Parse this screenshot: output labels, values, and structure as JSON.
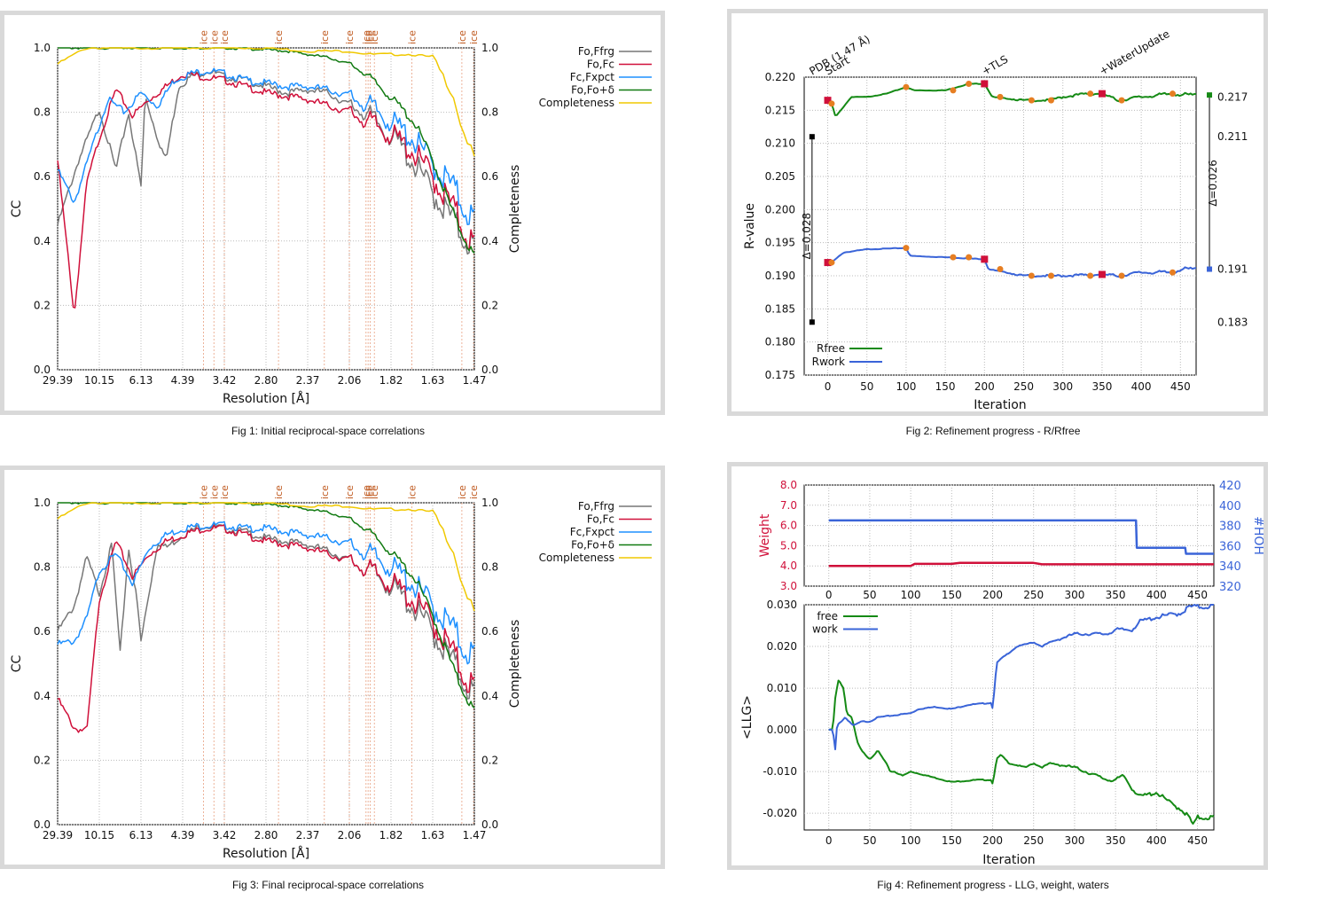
{
  "captions": {
    "fig1": "Fig 1:  Initial reciprocal-space correlations",
    "fig2": "Fig 2:  Refinement progress - R/Rfree",
    "fig3": "Fig 3:  Final reciprocal-space correlations",
    "fig4": "Fig 4:  Refinement progress - LLG, weight, waters"
  },
  "chart_data": [
    {
      "id": "fig1",
      "type": "line",
      "xlabel": "Resolution [Å]",
      "ylabel": "CC",
      "y2label": "Completeness",
      "xtick_labels": [
        "29.39",
        "10.15",
        "6.13",
        "4.39",
        "3.42",
        "2.80",
        "2.37",
        "2.06",
        "1.82",
        "1.63",
        "1.47"
      ],
      "ylim": [
        0,
        1
      ],
      "yticks": [
        "0.0",
        "0.2",
        "0.4",
        "0.6",
        "0.8",
        "1.0"
      ],
      "y2ticks": [
        "0.0",
        "0.2",
        "0.4",
        "0.6",
        "0.8",
        "1.0"
      ],
      "grid": true,
      "legend_position": "outside-right",
      "ice_label": "ice",
      "ice_ring_x_fraction": [
        0.35,
        0.375,
        0.4,
        0.53,
        0.64,
        0.7,
        0.74,
        0.745,
        0.75,
        0.76,
        0.85,
        0.97,
        0.998
      ],
      "series": [
        {
          "name": "Fo,Ffrg",
          "color": "#777777",
          "x": [
            0,
            0.05,
            0.1,
            0.14,
            0.17,
            0.2,
            0.21,
            0.24,
            0.26,
            0.29,
            0.32,
            0.36,
            0.4,
            0.45,
            0.5,
            0.55,
            0.6,
            0.65,
            0.7,
            0.74,
            0.78,
            0.82,
            0.86,
            0.9,
            0.94,
            0.97,
            1
          ],
          "y": [
            0.45,
            0.65,
            0.81,
            0.62,
            0.8,
            0.57,
            0.85,
            0.72,
            0.65,
            0.88,
            0.91,
            0.93,
            0.91,
            0.9,
            0.88,
            0.86,
            0.87,
            0.86,
            0.82,
            0.8,
            0.75,
            0.7,
            0.63,
            0.55,
            0.48,
            0.42,
            0.38
          ]
        },
        {
          "name": "Fo,Fc",
          "color": "#d0103a",
          "x": [
            0,
            0.04,
            0.07,
            0.1,
            0.14,
            0.18,
            0.22,
            0.26,
            0.3,
            0.35,
            0.4,
            0.45,
            0.5,
            0.55,
            0.6,
            0.65,
            0.7,
            0.75,
            0.8,
            0.85,
            0.9,
            0.94,
            0.97,
            1
          ],
          "y": [
            0.65,
            0.17,
            0.58,
            0.72,
            0.87,
            0.79,
            0.84,
            0.88,
            0.92,
            0.91,
            0.9,
            0.88,
            0.86,
            0.85,
            0.84,
            0.82,
            0.8,
            0.77,
            0.73,
            0.68,
            0.6,
            0.52,
            0.45,
            0.38
          ]
        },
        {
          "name": "Fc,Fxpct",
          "color": "#1e90ff",
          "x": [
            0,
            0.04,
            0.08,
            0.12,
            0.16,
            0.2,
            0.24,
            0.28,
            0.32,
            0.36,
            0.4,
            0.45,
            0.5,
            0.55,
            0.6,
            0.65,
            0.7,
            0.75,
            0.8,
            0.85,
            0.9,
            0.94,
            0.97,
            1
          ],
          "y": [
            0.62,
            0.52,
            0.68,
            0.84,
            0.8,
            0.86,
            0.82,
            0.9,
            0.92,
            0.93,
            0.92,
            0.9,
            0.89,
            0.88,
            0.88,
            0.87,
            0.85,
            0.82,
            0.77,
            0.72,
            0.64,
            0.58,
            0.52,
            0.46
          ]
        },
        {
          "name": "Fo,Fo+δ",
          "color": "#117a11",
          "x": [
            0,
            0.05,
            0.1,
            0.2,
            0.3,
            0.4,
            0.5,
            0.55,
            0.6,
            0.65,
            0.7,
            0.74,
            0.78,
            0.82,
            0.86,
            0.9,
            0.93,
            0.96,
            1
          ],
          "y": [
            1.0,
            1.0,
            1.0,
            1.0,
            1.0,
            1.0,
            0.995,
            0.99,
            0.98,
            0.97,
            0.95,
            0.92,
            0.87,
            0.82,
            0.76,
            0.65,
            0.55,
            0.45,
            0.35
          ]
        },
        {
          "name": "Completeness",
          "color": "#f0c800",
          "x": [
            0,
            0.04,
            0.07,
            0.1,
            0.2,
            0.3,
            0.4,
            0.5,
            0.6,
            0.7,
            0.75,
            0.8,
            0.85,
            0.9,
            0.93,
            0.95,
            0.97,
            1
          ],
          "y": [
            0.95,
            0.98,
            1.0,
            1.0,
            1.0,
            1.0,
            1.0,
            1.0,
            0.99,
            0.99,
            0.98,
            0.98,
            0.98,
            0.97,
            0.9,
            0.85,
            0.75,
            0.66
          ]
        }
      ]
    },
    {
      "id": "fig2",
      "type": "line",
      "xlabel": "Iteration",
      "ylabel": "R-value",
      "xticks": [
        0,
        50,
        100,
        150,
        200,
        250,
        300,
        350,
        400,
        450
      ],
      "xlim": [
        -30,
        470
      ],
      "yticks": [
        "0.175",
        "0.180",
        "0.185",
        "0.190",
        "0.195",
        "0.200",
        "0.205",
        "0.210",
        "0.215",
        "0.220"
      ],
      "ylim": [
        0.175,
        0.22
      ],
      "grid": true,
      "legend_position": "bottom-left",
      "annotations": [
        {
          "text": "PDB (1.47 Å)",
          "x": -20
        },
        {
          "text": "Start",
          "x": 0
        },
        {
          "text": "+TLS",
          "x": 200
        },
        {
          "text": "+WaterUpdate",
          "x": 350
        }
      ],
      "left_bar_label": "Δ=0.028",
      "left_bar_top": 0.211,
      "left_bar_bottom": 0.183,
      "right_bar_label": "Δ=0.026",
      "right_values": [
        "0.217",
        "0.211",
        "0.191",
        "0.183"
      ],
      "series": [
        {
          "name": "Rfree",
          "color": "#158a15",
          "x": [
            0,
            5,
            10,
            20,
            30,
            50,
            75,
            100,
            110,
            150,
            180,
            200,
            210,
            250,
            280,
            300,
            330,
            350,
            370,
            400,
            440,
            460,
            470
          ],
          "y": [
            0.2165,
            0.216,
            0.214,
            0.2155,
            0.217,
            0.217,
            0.2175,
            0.2185,
            0.218,
            0.218,
            0.219,
            0.219,
            0.217,
            0.2165,
            0.2165,
            0.217,
            0.2175,
            0.2175,
            0.2165,
            0.217,
            0.2175,
            0.2173,
            0.2173
          ]
        },
        {
          "name": "Rwork",
          "color": "#3a64d8",
          "x": [
            0,
            5,
            10,
            20,
            50,
            100,
            105,
            150,
            200,
            205,
            250,
            300,
            350,
            370,
            400,
            440,
            450,
            470
          ],
          "y": [
            0.192,
            0.192,
            0.1925,
            0.1935,
            0.194,
            0.1942,
            0.193,
            0.1928,
            0.1925,
            0.191,
            0.19,
            0.19,
            0.1902,
            0.19,
            0.1905,
            0.1905,
            0.191,
            0.191
          ]
        }
      ]
    },
    {
      "id": "fig3",
      "type": "line",
      "xlabel": "Resolution [Å]",
      "ylabel": "CC",
      "y2label": "Completeness",
      "xtick_labels": [
        "29.39",
        "10.15",
        "6.13",
        "4.39",
        "3.42",
        "2.80",
        "2.37",
        "2.06",
        "1.82",
        "1.63",
        "1.47"
      ],
      "ylim": [
        0,
        1
      ],
      "yticks": [
        "0.0",
        "0.2",
        "0.4",
        "0.6",
        "0.8",
        "1.0"
      ],
      "y2ticks": [
        "0.0",
        "0.2",
        "0.4",
        "0.6",
        "0.8",
        "1.0"
      ],
      "grid": true,
      "legend_position": "outside-right",
      "ice_label": "ice",
      "ice_ring_x_fraction": [
        0.35,
        0.375,
        0.4,
        0.53,
        0.64,
        0.7,
        0.74,
        0.745,
        0.75,
        0.76,
        0.85,
        0.97,
        0.998
      ],
      "series": [
        {
          "name": "Fo,Ffrg",
          "color": "#777777",
          "x": [
            0,
            0.04,
            0.07,
            0.1,
            0.13,
            0.15,
            0.17,
            0.19,
            0.2,
            0.24,
            0.26,
            0.3,
            0.35,
            0.4,
            0.45,
            0.5,
            0.55,
            0.6,
            0.65,
            0.7,
            0.75,
            0.8,
            0.85,
            0.9,
            0.94,
            0.97,
            1
          ],
          "y": [
            0.6,
            0.68,
            0.83,
            0.72,
            0.87,
            0.53,
            0.86,
            0.7,
            0.57,
            0.88,
            0.86,
            0.9,
            0.93,
            0.92,
            0.91,
            0.89,
            0.88,
            0.87,
            0.85,
            0.82,
            0.79,
            0.74,
            0.68,
            0.6,
            0.52,
            0.46,
            0.4
          ]
        },
        {
          "name": "Fo,Fc",
          "color": "#d0103a",
          "x": [
            0,
            0.04,
            0.07,
            0.1,
            0.14,
            0.18,
            0.22,
            0.26,
            0.3,
            0.35,
            0.4,
            0.45,
            0.5,
            0.55,
            0.6,
            0.65,
            0.7,
            0.75,
            0.8,
            0.85,
            0.9,
            0.94,
            0.97,
            1
          ],
          "y": [
            0.39,
            0.3,
            0.29,
            0.7,
            0.88,
            0.77,
            0.84,
            0.88,
            0.9,
            0.92,
            0.92,
            0.9,
            0.88,
            0.87,
            0.86,
            0.84,
            0.82,
            0.79,
            0.75,
            0.7,
            0.63,
            0.55,
            0.48,
            0.42
          ]
        },
        {
          "name": "Fc,Fxpct",
          "color": "#1e90ff",
          "x": [
            0,
            0.04,
            0.07,
            0.1,
            0.14,
            0.18,
            0.22,
            0.26,
            0.3,
            0.35,
            0.4,
            0.45,
            0.5,
            0.55,
            0.6,
            0.65,
            0.7,
            0.75,
            0.8,
            0.85,
            0.9,
            0.94,
            0.97,
            1
          ],
          "y": [
            0.56,
            0.57,
            0.64,
            0.79,
            0.84,
            0.75,
            0.86,
            0.9,
            0.92,
            0.93,
            0.93,
            0.92,
            0.92,
            0.91,
            0.9,
            0.89,
            0.87,
            0.84,
            0.8,
            0.75,
            0.68,
            0.62,
            0.56,
            0.52
          ]
        },
        {
          "name": "Fo,Fo+δ",
          "color": "#117a11",
          "x": [
            0,
            0.05,
            0.1,
            0.2,
            0.3,
            0.4,
            0.5,
            0.55,
            0.6,
            0.65,
            0.7,
            0.74,
            0.78,
            0.82,
            0.86,
            0.9,
            0.93,
            0.96,
            1
          ],
          "y": [
            1.0,
            1.0,
            1.0,
            1.0,
            1.0,
            1.0,
            0.995,
            0.99,
            0.98,
            0.97,
            0.95,
            0.92,
            0.87,
            0.82,
            0.76,
            0.65,
            0.55,
            0.45,
            0.35
          ]
        },
        {
          "name": "Completeness",
          "color": "#f0c800",
          "x": [
            0,
            0.04,
            0.07,
            0.1,
            0.2,
            0.3,
            0.4,
            0.5,
            0.6,
            0.7,
            0.75,
            0.8,
            0.85,
            0.9,
            0.93,
            0.95,
            0.97,
            1
          ],
          "y": [
            0.95,
            0.98,
            1.0,
            1.0,
            1.0,
            1.0,
            1.0,
            1.0,
            0.99,
            0.99,
            0.98,
            0.98,
            0.98,
            0.97,
            0.9,
            0.85,
            0.75,
            0.66
          ]
        }
      ]
    },
    {
      "id": "fig4",
      "type": "line",
      "xlabel": "Iteration",
      "ylabel": "<LLG>",
      "top_ylabel": "Weight",
      "top_y2label": "#HOH",
      "xticks": [
        0,
        50,
        100,
        150,
        200,
        250,
        300,
        350,
        400,
        450
      ],
      "xlim": [
        -30,
        470
      ],
      "top_yticks": [
        "3.0",
        "4.0",
        "5.0",
        "6.0",
        "7.0",
        "8.0"
      ],
      "top_ylim": [
        3,
        8
      ],
      "top_y2ticks": [
        "320",
        "340",
        "360",
        "380",
        "400",
        "420"
      ],
      "top_y2lim": [
        320,
        420
      ],
      "yticks": [
        "-0.020",
        "-0.010",
        "0.000",
        "0.010",
        "0.020",
        "0.030"
      ],
      "ylim": [
        -0.024,
        0.03
      ],
      "grid": true,
      "legend_position": "top-left",
      "top_series": [
        {
          "axis": "left",
          "color": "#d0103a",
          "x": [
            0,
            100,
            105,
            150,
            160,
            250,
            260,
            470
          ],
          "y": [
            4.0,
            4.0,
            4.1,
            4.1,
            4.15,
            4.15,
            4.08,
            4.08
          ]
        },
        {
          "axis": "right",
          "color": "#3a64d8",
          "x": [
            0,
            375,
            376,
            435,
            436,
            470
          ],
          "y": [
            385,
            385,
            358,
            358,
            352,
            352
          ]
        }
      ],
      "series": [
        {
          "name": "free",
          "color": "#158a15",
          "x": [
            0,
            5,
            8,
            12,
            18,
            22,
            28,
            35,
            40,
            50,
            60,
            70,
            75,
            80,
            90,
            100,
            120,
            150,
            180,
            199,
            200,
            205,
            210,
            220,
            240,
            250,
            260,
            270,
            300,
            340,
            350,
            360,
            370,
            380,
            400,
            420,
            430,
            440,
            445,
            450,
            470
          ],
          "y": [
            0,
            0.0,
            0.008,
            0.012,
            0.01,
            0.004,
            0.003,
            -0.003,
            -0.005,
            -0.007,
            -0.005,
            -0.008,
            -0.01,
            -0.01,
            -0.011,
            -0.01,
            -0.011,
            -0.0125,
            -0.012,
            -0.012,
            -0.013,
            -0.007,
            -0.006,
            -0.008,
            -0.009,
            -0.008,
            -0.009,
            -0.008,
            -0.009,
            -0.012,
            -0.012,
            -0.011,
            -0.014,
            -0.016,
            -0.015,
            -0.018,
            -0.019,
            -0.021,
            -0.023,
            -0.021,
            -0.021
          ]
        },
        {
          "name": "work",
          "color": "#3a64d8",
          "x": [
            0,
            5,
            8,
            10,
            15,
            20,
            25,
            30,
            40,
            50,
            60,
            80,
            100,
            110,
            130,
            150,
            170,
            199,
            200,
            205,
            210,
            230,
            250,
            260,
            270,
            300,
            340,
            350,
            370,
            380,
            400,
            430,
            440,
            460,
            470
          ],
          "y": [
            0,
            0.0,
            -0.005,
            0.001,
            0.002,
            0.003,
            0.002,
            0.001,
            0.002,
            0.002,
            0.003,
            0.0035,
            0.004,
            0.005,
            0.0055,
            0.005,
            0.006,
            0.0065,
            0.005,
            0.016,
            0.017,
            0.02,
            0.021,
            0.02,
            0.021,
            0.023,
            0.023,
            0.024,
            0.024,
            0.026,
            0.027,
            0.028,
            0.0295,
            0.0295,
            0.03
          ]
        }
      ]
    }
  ]
}
